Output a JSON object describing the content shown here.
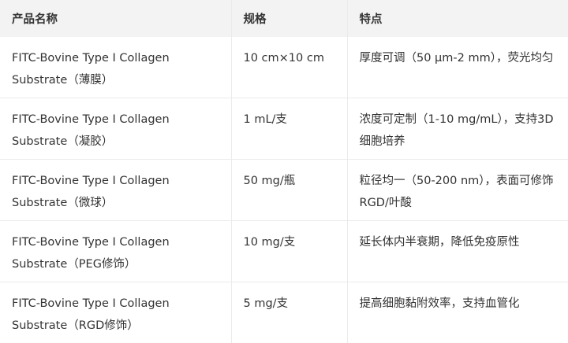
{
  "table": {
    "headers": [
      "产品名称",
      "规格",
      "特点"
    ],
    "rows": [
      [
        "FITC-Bovine Type I Collagen Substrate（薄膜）",
        "10 cm×10 cm",
        "厚度可调（50 μm-2 mm），荧光均匀"
      ],
      [
        "FITC-Bovine Type I Collagen Substrate（凝胶）",
        "1 mL/支",
        "浓度可定制（1-10 mg/mL），支持3D细胞培养"
      ],
      [
        "FITC-Bovine Type I Collagen Substrate（微球）",
        "50 mg/瓶",
        "粒径均一（50-200 nm），表面可修饰RGD/叶酸"
      ],
      [
        "FITC-Bovine Type I Collagen Substrate（PEG修饰）",
        "10 mg/支",
        "延长体内半衰期，降低免疫原性"
      ],
      [
        "FITC-Bovine Type I Collagen Substrate（RGD修饰）",
        "5 mg/支",
        "提高细胞黏附效率，支持血管化"
      ]
    ]
  }
}
